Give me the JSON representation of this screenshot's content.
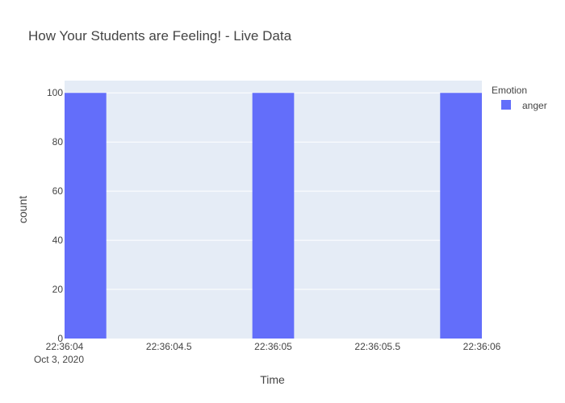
{
  "chart_data": {
    "type": "bar",
    "title": "How Your Students are Feeling! - Live Data",
    "xlabel": "Time",
    "ylabel": "count",
    "ylim": [
      0,
      105
    ],
    "yticks": [
      0,
      20,
      40,
      60,
      80,
      100
    ],
    "x_ticks": [
      {
        "t": 0,
        "label": "22:36:04",
        "sublabel": "Oct 3, 2020"
      },
      {
        "t": 0.5,
        "label": "22:36:04.5",
        "sublabel": ""
      },
      {
        "t": 1,
        "label": "22:36:05",
        "sublabel": ""
      },
      {
        "t": 1.5,
        "label": "22:36:05.5",
        "sublabel": ""
      },
      {
        "t": 2,
        "label": "22:36:06",
        "sublabel": ""
      }
    ],
    "x_range_seconds": [
      0,
      2
    ],
    "x_origin": "Oct 3, 2020 22:36:04",
    "bar_width_seconds": 0.2,
    "grid": true,
    "legend": {
      "title": "Emotion",
      "position": "right"
    },
    "series": [
      {
        "name": "anger",
        "color": "#636efa",
        "points": [
          {
            "time": "22:36:04",
            "t": 0.1,
            "value": 100
          },
          {
            "time": "22:36:05",
            "t": 1.0,
            "value": 100
          },
          {
            "time": "22:36:06",
            "t": 1.9,
            "value": 100
          }
        ]
      }
    ],
    "colors": {
      "plot_bg": "#e5ecf6",
      "grid": "#ffffff",
      "text": "#444444"
    }
  }
}
